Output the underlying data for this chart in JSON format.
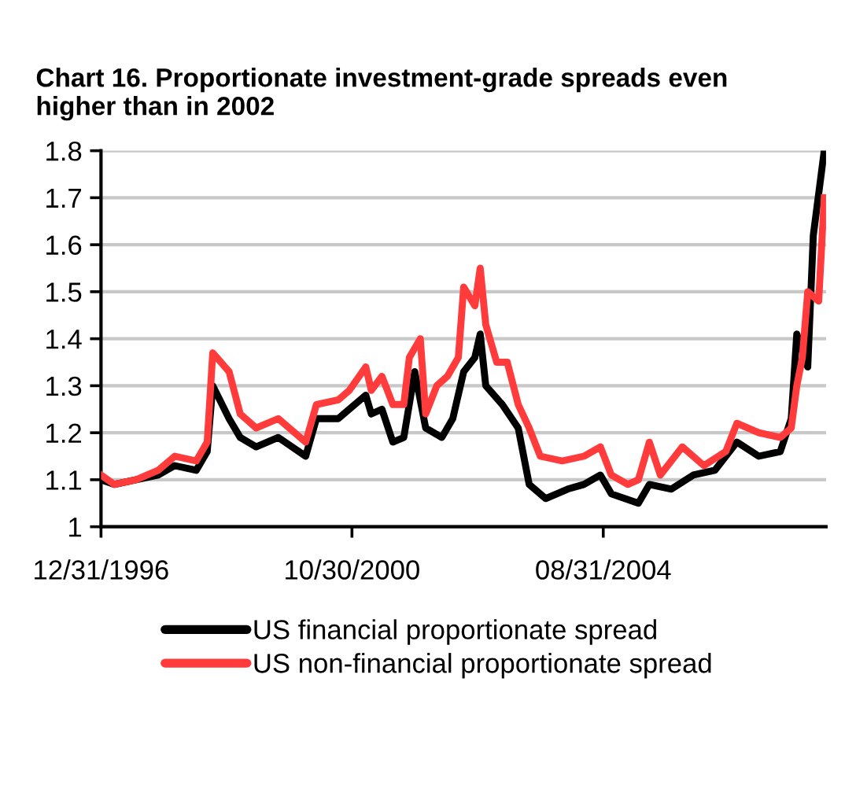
{
  "chart_data": {
    "type": "line",
    "title": "Chart 16. Proportionate investment-grade spreads even\nhigher than in 2002",
    "series": [
      {
        "name": "US financial proportionate spread",
        "color": "#000000",
        "x": [
          "1996-12-31",
          "1997-03",
          "1997-11",
          "1998-02",
          "1998-06",
          "1998-08",
          "1998-09",
          "1998-12",
          "1999-02",
          "1999-05",
          "1999-09",
          "2000-02",
          "2000-04",
          "2000-08",
          "2001-01",
          "2001-02",
          "2001-04",
          "2001-06",
          "2001-08",
          "2001-10",
          "2001-12",
          "2002-03",
          "2002-05",
          "2002-07",
          "2002-09",
          "2002-10",
          "2002-11",
          "2003-02",
          "2003-05",
          "2003-07",
          "2003-10",
          "2004-02",
          "2004-05",
          "2004-08",
          "2004-10",
          "2005-03",
          "2005-05",
          "2005-09",
          "2006-01",
          "2006-05",
          "2006-09",
          "2007-01",
          "2007-05",
          "2007-07",
          "2007-08",
          "2007-10",
          "2007-11",
          "2008-01"
        ],
        "values": [
          1.1,
          1.09,
          1.11,
          1.13,
          1.12,
          1.16,
          1.3,
          1.23,
          1.19,
          1.17,
          1.19,
          1.15,
          1.23,
          1.23,
          1.28,
          1.24,
          1.25,
          1.18,
          1.19,
          1.33,
          1.21,
          1.19,
          1.23,
          1.33,
          1.36,
          1.41,
          1.3,
          1.26,
          1.21,
          1.09,
          1.06,
          1.08,
          1.09,
          1.11,
          1.07,
          1.05,
          1.09,
          1.08,
          1.11,
          1.12,
          1.18,
          1.15,
          1.16,
          1.23,
          1.41,
          1.34,
          1.62,
          1.8
        ]
      },
      {
        "name": "US non-financial proportionate spread",
        "color": "#ff3b3b",
        "x": [
          "1996-12-31",
          "1997-03",
          "1997-07",
          "1997-11",
          "1998-02",
          "1998-06",
          "1998-08",
          "1998-09",
          "1998-12",
          "1999-02",
          "1999-05",
          "1999-09",
          "2000-02",
          "2000-04",
          "2000-08",
          "2000-10",
          "2001-01",
          "2001-02",
          "2001-04",
          "2001-06",
          "2001-08",
          "2001-09",
          "2001-11",
          "2001-12",
          "2002-02",
          "2002-04",
          "2002-06",
          "2002-07",
          "2002-09",
          "2002-10",
          "2002-11",
          "2003-01",
          "2003-03",
          "2003-05",
          "2003-07",
          "2003-09",
          "2004-01",
          "2004-05",
          "2004-08",
          "2004-10",
          "2005-01",
          "2005-03",
          "2005-05",
          "2005-07",
          "2005-11",
          "2006-03",
          "2006-07",
          "2006-09",
          "2007-01",
          "2007-05",
          "2007-07",
          "2007-08",
          "2007-09",
          "2007-10",
          "2007-12",
          "2008-01"
        ],
        "values": [
          1.11,
          1.09,
          1.1,
          1.12,
          1.15,
          1.14,
          1.18,
          1.37,
          1.33,
          1.24,
          1.21,
          1.23,
          1.18,
          1.26,
          1.27,
          1.29,
          1.34,
          1.29,
          1.32,
          1.26,
          1.26,
          1.36,
          1.4,
          1.24,
          1.3,
          1.32,
          1.36,
          1.51,
          1.47,
          1.55,
          1.43,
          1.35,
          1.35,
          1.26,
          1.21,
          1.15,
          1.14,
          1.15,
          1.17,
          1.11,
          1.09,
          1.1,
          1.18,
          1.11,
          1.17,
          1.13,
          1.16,
          1.22,
          1.2,
          1.19,
          1.21,
          1.3,
          1.36,
          1.5,
          1.48,
          1.7
        ]
      }
    ],
    "xlim": [
      "1996-12-31",
      "2008-01-25"
    ],
    "xticks": [
      {
        "value": "1996-12-31",
        "label": "12/31/1996"
      },
      {
        "value": "2000-10-30",
        "label": "10/30/2000"
      },
      {
        "value": "2004-08-31",
        "label": "08/31/2004"
      }
    ],
    "ylim": [
      1,
      1.8
    ],
    "yticks": [
      1,
      1.1,
      1.2,
      1.3,
      1.4,
      1.5,
      1.6,
      1.7,
      1.8
    ],
    "grid": "y",
    "legend": "bottom",
    "line_style": "solid",
    "marker": "none"
  }
}
